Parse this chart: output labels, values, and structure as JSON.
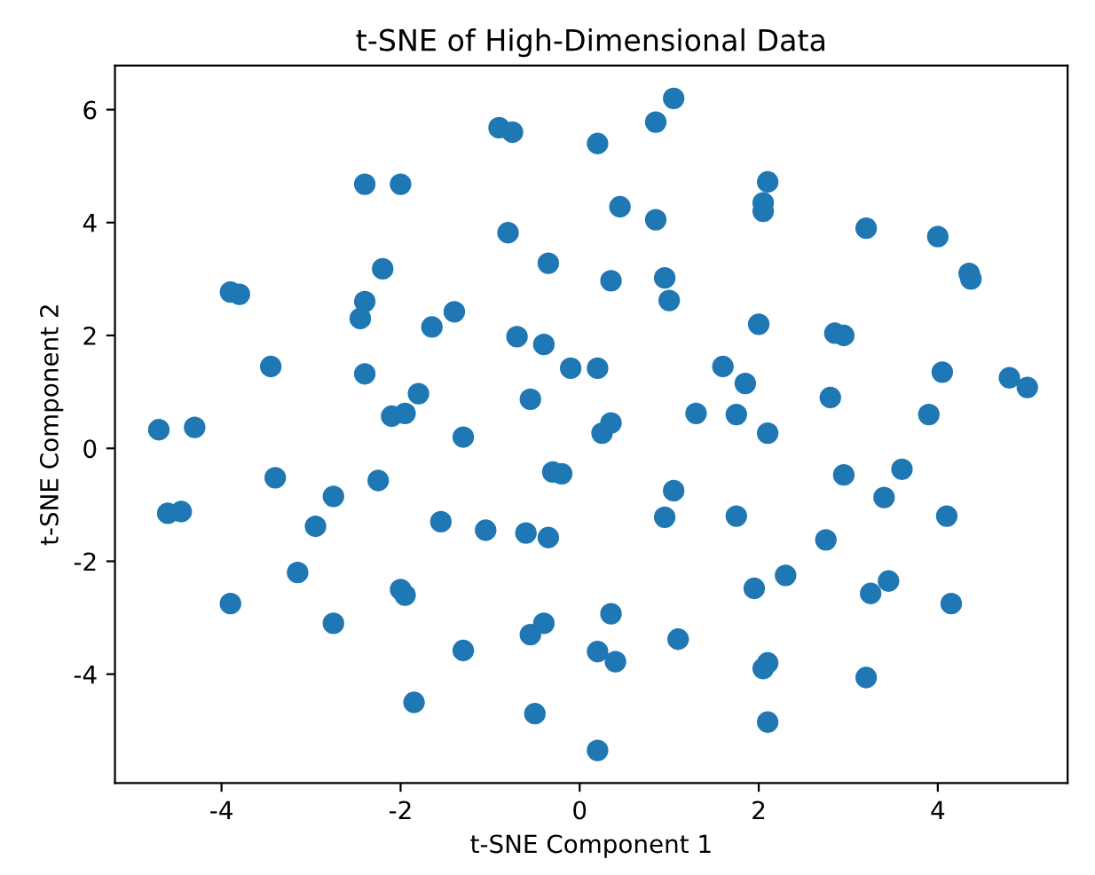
{
  "chart_data": {
    "type": "scatter",
    "title": "t-SNE of High-Dimensional Data",
    "xlabel": "t-SNE Component 1",
    "ylabel": "t-SNE Component 2",
    "xlim": [
      -5.19,
      5.45
    ],
    "ylim": [
      -5.93,
      6.78
    ],
    "xticks": [
      -4,
      -2,
      0,
      2,
      4
    ],
    "yticks": [
      -4,
      -2,
      0,
      2,
      4,
      6
    ],
    "grid": false,
    "marker": "circle",
    "series": [
      {
        "color": "#1f77b4",
        "x": [
          -0.9,
          -0.75,
          0.2,
          0.85,
          1.05,
          -2.4,
          -2.0,
          0.45,
          0.85,
          2.1,
          2.05,
          2.05,
          3.2,
          4.0,
          4.35,
          4.37,
          -0.8,
          -2.2,
          -0.35,
          0.35,
          0.95,
          1.0,
          -3.9,
          -3.8,
          -2.4,
          -2.45,
          -1.65,
          -1.4,
          -0.7,
          -0.4,
          2.0,
          2.85,
          2.95,
          -3.45,
          -2.4,
          -1.8,
          -2.1,
          -1.95,
          -1.3,
          -0.55,
          -0.1,
          0.2,
          0.35,
          0.25,
          1.6,
          1.85,
          1.3,
          1.75,
          2.1,
          2.8,
          3.9,
          4.05,
          4.8,
          5.0,
          -4.7,
          -4.3,
          -3.4,
          -2.25,
          -2.75,
          -4.6,
          -4.45,
          -2.95,
          -1.55,
          -1.05,
          -0.6,
          -0.35,
          -0.3,
          -0.2,
          1.05,
          0.95,
          1.75,
          2.95,
          3.6,
          3.4,
          4.1,
          -3.15,
          -2.0,
          -1.95,
          -2.75,
          -3.9,
          -1.3,
          -1.85,
          -0.55,
          -0.4,
          0.35,
          0.2,
          0.4,
          1.1,
          1.95,
          2.3,
          2.75,
          3.25,
          3.45,
          4.15,
          2.05,
          2.1,
          3.2,
          2.1,
          -0.5,
          0.2
        ],
        "values": [
          5.68,
          5.6,
          5.4,
          5.78,
          6.2,
          4.68,
          4.68,
          4.28,
          4.05,
          4.72,
          4.35,
          4.2,
          3.9,
          3.75,
          3.1,
          3.0,
          3.82,
          3.18,
          3.28,
          2.97,
          3.02,
          2.62,
          2.77,
          2.73,
          2.6,
          2.3,
          2.15,
          2.42,
          1.98,
          1.84,
          2.2,
          2.04,
          2.0,
          1.45,
          1.32,
          0.97,
          0.57,
          0.62,
          0.2,
          0.87,
          1.42,
          1.42,
          0.45,
          0.27,
          1.45,
          1.15,
          0.62,
          0.6,
          0.27,
          0.9,
          0.6,
          1.35,
          1.25,
          1.08,
          0.33,
          0.37,
          -0.52,
          -0.57,
          -0.85,
          -1.15,
          -1.12,
          -1.38,
          -1.3,
          -1.45,
          -1.5,
          -1.58,
          -0.42,
          -0.45,
          -0.75,
          -1.22,
          -1.2,
          -0.47,
          -0.37,
          -0.87,
          -1.2,
          -2.2,
          -2.5,
          -2.6,
          -3.1,
          -2.75,
          -3.58,
          -4.5,
          -3.3,
          -3.1,
          -2.93,
          -3.6,
          -3.78,
          -3.38,
          -2.48,
          -2.25,
          -1.62,
          -2.57,
          -2.35,
          -2.75,
          -3.9,
          -3.8,
          -4.06,
          -4.85,
          -4.7,
          -5.35
        ]
      }
    ]
  }
}
